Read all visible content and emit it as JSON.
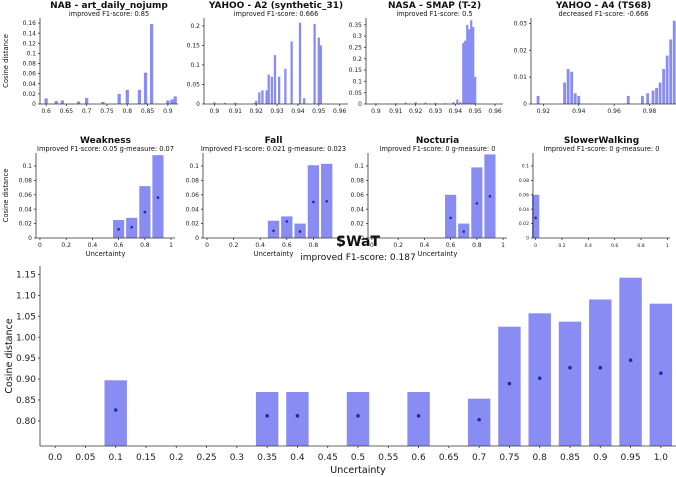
{
  "chart_data": [
    {
      "id": "nab",
      "type": "bar",
      "title": "NAB - art_daily_nojump",
      "subtitle": "improved F1-score: 0.85",
      "xlabel": "",
      "ylabel": "Cosine distance",
      "xlim": [
        0.585,
        0.925
      ],
      "ylim": [
        0,
        0.17
      ],
      "xticks": [
        0.6,
        0.65,
        0.7,
        0.75,
        0.8,
        0.85,
        0.9
      ],
      "xtick_labels": [
        "0.6",
        "0.65",
        "0.7",
        "0.75",
        "0.8",
        "0.85",
        "0.9"
      ],
      "yticks": [
        0,
        0.02,
        0.04,
        0.06,
        0.08,
        0.1,
        0.12,
        0.14,
        0.16
      ],
      "ytick_labels": [
        "0",
        "0.02",
        "0.04",
        "0.06",
        "0.08",
        "0.1",
        "0.12",
        "0.14",
        "0.16"
      ],
      "bar_width": 0.008,
      "x": [
        0.6,
        0.625,
        0.64,
        0.68,
        0.7,
        0.74,
        0.78,
        0.8,
        0.83,
        0.845,
        0.86,
        0.9,
        0.91,
        0.918
      ],
      "values": [
        0.011,
        0.006,
        0.007,
        0.005,
        0.012,
        0.004,
        0.02,
        0.028,
        0.028,
        0.062,
        0.158,
        0.007,
        0.009,
        0.015
      ]
    },
    {
      "id": "yahoo-a2",
      "type": "bar",
      "title": "YAHOO - A2 (synthetic_31)",
      "subtitle": "improved F1-score: 0.666",
      "xlabel": "",
      "ylabel": "",
      "xlim": [
        0.895,
        0.964
      ],
      "ylim": [
        0,
        0.22
      ],
      "xticks": [
        0.9,
        0.91,
        0.92,
        0.93,
        0.94,
        0.95,
        0.96
      ],
      "xtick_labels": [
        "0.9",
        "0.91",
        "0.92",
        "0.93",
        "0.94",
        "0.95",
        "0.96"
      ],
      "yticks": [
        0,
        0.05,
        0.1,
        0.15,
        0.2
      ],
      "ytick_labels": [
        "0",
        "0.05",
        "0.1",
        "0.15",
        "0.2"
      ],
      "bar_width": 0.0011,
      "x": [
        0.9,
        0.905,
        0.91,
        0.919,
        0.92,
        0.9215,
        0.923,
        0.925,
        0.926,
        0.9275,
        0.929,
        0.931,
        0.934,
        0.937,
        0.941,
        0.943,
        0.948,
        0.95,
        0.951
      ],
      "values": [
        0.004,
        0.003,
        0.003,
        0.002,
        0.008,
        0.03,
        0.035,
        0.035,
        0.075,
        0.07,
        0.125,
        0.07,
        0.09,
        0.16,
        0.208,
        0.015,
        0.205,
        0.17,
        0.15
      ]
    },
    {
      "id": "nasa",
      "type": "bar",
      "title": "NASA - SMAP (T-2)",
      "subtitle": "improved F1-score: 0.5",
      "xlabel": "",
      "ylabel": "",
      "xlim": [
        0.895,
        0.964
      ],
      "ylim": [
        0,
        0.38
      ],
      "xticks": [
        0.9,
        0.91,
        0.92,
        0.93,
        0.94,
        0.95,
        0.96
      ],
      "xtick_labels": [
        "0.9",
        "0.91",
        "0.92",
        "0.93",
        "0.94",
        "0.95",
        "0.96"
      ],
      "yticks": [
        0,
        0.05,
        0.1,
        0.15,
        0.2,
        0.25,
        0.3,
        0.35
      ],
      "ytick_labels": [
        "0",
        "0.05",
        "0.1",
        "0.15",
        "0.2",
        "0.25",
        "0.3",
        "0.35"
      ],
      "bar_width": 0.0011,
      "x": [
        0.9,
        0.905,
        0.91,
        0.915,
        0.92,
        0.925,
        0.93,
        0.935,
        0.939,
        0.941,
        0.9425,
        0.944,
        0.945,
        0.946,
        0.947,
        0.948,
        0.949,
        0.95
      ],
      "values": [
        0.003,
        0.002,
        0.003,
        0.006,
        0.008,
        0.006,
        0.005,
        0.003,
        0.008,
        0.02,
        0.008,
        0.27,
        0.28,
        0.35,
        0.33,
        0.37,
        0.34,
        0.12
      ]
    },
    {
      "id": "yahoo-a4",
      "type": "bar",
      "title": "YAHOO - A4 (TS68)",
      "subtitle": "decreased F1-score: -0.666",
      "xlabel": "",
      "ylabel": "",
      "xlim": [
        0.913,
        0.995
      ],
      "ylim": [
        0,
        0.032
      ],
      "xticks": [
        0.92,
        0.94,
        0.96,
        0.98
      ],
      "xtick_labels": [
        "0.92",
        "0.94",
        "0.96",
        "0.98"
      ],
      "yticks": [
        0,
        0.01,
        0.02,
        0.03
      ],
      "ytick_labels": [
        "0",
        "0.01",
        "0.02",
        "0.03"
      ],
      "bar_width": 0.0016,
      "x": [
        0.917,
        0.932,
        0.934,
        0.936,
        0.938,
        0.94,
        0.968,
        0.976,
        0.979,
        0.982,
        0.984,
        0.986,
        0.988,
        0.99,
        0.992,
        0.994
      ],
      "values": [
        0.003,
        0.008,
        0.013,
        0.012,
        0.004,
        0.003,
        0.003,
        0.003,
        0.004,
        0.005,
        0.006,
        0.008,
        0.013,
        0.018,
        0.024,
        0.031
      ]
    },
    {
      "id": "weakness",
      "type": "bar",
      "title": "Weakness",
      "subtitle": "Improved F1-score: 0.05   g-measure: 0.07",
      "xlabel": "Uncertainty",
      "ylabel": "Cosine distance",
      "xlim": [
        -0.03,
        1.03
      ],
      "ylim": [
        0,
        0.118
      ],
      "xticks": [
        0,
        0.2,
        0.4,
        0.6,
        0.8,
        1
      ],
      "xtick_labels": [
        "0",
        "0.2",
        "0.4",
        "0.6",
        "0.8",
        "1"
      ],
      "yticks": [
        0,
        0.02,
        0.04,
        0.06,
        0.08,
        0.1
      ],
      "ytick_labels": [
        "0",
        "0.02",
        "0.04",
        "0.06",
        "0.08",
        "0.1"
      ],
      "bar_width": 0.085,
      "x": [
        0.6,
        0.7,
        0.8,
        0.9
      ],
      "values": [
        0.025,
        0.028,
        0.072,
        0.115
      ],
      "markers": [
        0.012,
        0.015,
        0.036,
        0.056
      ]
    },
    {
      "id": "fall",
      "type": "bar",
      "title": "Fall",
      "subtitle": "Improved F1-score: 0.021   g-measure: 0.023",
      "xlabel": "Uncertainty",
      "ylabel": "",
      "xlim": [
        -0.03,
        1.03
      ],
      "ylim": [
        0,
        0.118
      ],
      "xticks": [
        0,
        0.2,
        0.4,
        0.6,
        0.8,
        1
      ],
      "xtick_labels": [
        "0",
        "0.2",
        "0.4",
        "0.6",
        "0.8",
        "1"
      ],
      "yticks": [
        0,
        0.02,
        0.04,
        0.06,
        0.08,
        0.1
      ],
      "ytick_labels": [
        "0",
        "0.02",
        "0.04",
        "0.06",
        "0.08",
        "0.1"
      ],
      "bar_width": 0.085,
      "x": [
        0.5,
        0.6,
        0.7,
        0.8,
        0.9
      ],
      "values": [
        0.024,
        0.03,
        0.02,
        0.101,
        0.103
      ],
      "markers": [
        0.01,
        0.023,
        0.009,
        0.05,
        0.051
      ]
    },
    {
      "id": "nocturia",
      "type": "bar",
      "title": "Nocturia",
      "subtitle": "Improved F1-score: 0   g-measure: 0",
      "xlabel": "Uncertainty",
      "ylabel": "",
      "xlim": [
        -0.03,
        1.03
      ],
      "ylim": [
        0,
        0.118
      ],
      "xticks": [
        0,
        0.2,
        0.4,
        0.6,
        0.8,
        1
      ],
      "xtick_labels": [
        "0",
        "0.2",
        "0.4",
        "0.6",
        "0.8",
        "1"
      ],
      "yticks": [
        0,
        0.02,
        0.04,
        0.06,
        0.08,
        0.1
      ],
      "ytick_labels": [
        "0",
        "0.02",
        "0.04",
        "0.06",
        "0.08",
        "0.1"
      ],
      "bar_width": 0.085,
      "x": [
        0.6,
        0.7,
        0.8,
        0.9
      ],
      "values": [
        0.06,
        0.02,
        0.098,
        0.116
      ],
      "markers": [
        0.028,
        0.009,
        0.048,
        0.058
      ]
    },
    {
      "id": "slowerwalking",
      "type": "bar",
      "title": "SlowerWalking",
      "subtitle": "Improved F1-score: 0   g-measure: 0",
      "xlabel": "",
      "ylabel": "",
      "xlim": [
        -0.02,
        1.02
      ],
      "ylim": [
        0,
        0.118
      ],
      "xticks": [
        0,
        0.2,
        0.4,
        0.6,
        0.8,
        1
      ],
      "xtick_labels": [
        "0",
        "0.2",
        "0.4",
        "0.6",
        "0.8",
        "1"
      ],
      "yticks": [
        0,
        0.02,
        0.04,
        0.06,
        0.08,
        0.1
      ],
      "ytick_labels": [
        "0",
        "0.02",
        "0.04",
        "0.06",
        "0.08",
        "0.1"
      ],
      "bar_width": 0.055,
      "x": [
        0.0
      ],
      "values": [
        0.06
      ],
      "markers": [
        0.028
      ]
    },
    {
      "id": "swat",
      "type": "bar",
      "title": "SWaT",
      "subtitle": "improved F1-score: 0.187",
      "xlabel": "Uncertainty",
      "ylabel": "Cosine distance",
      "xlim": [
        -0.025,
        1.025
      ],
      "ylim": [
        0.74,
        1.17
      ],
      "xticks": [
        0,
        0.05,
        0.1,
        0.15,
        0.2,
        0.25,
        0.3,
        0.35,
        0.4,
        0.45,
        0.5,
        0.55,
        0.6,
        0.65,
        0.7,
        0.75,
        0.8,
        0.85,
        0.9,
        0.95,
        1.0
      ],
      "xtick_labels": [
        "0.0",
        "0.05",
        "0.1",
        "0.15",
        "0.2",
        "0.25",
        "0.3",
        "0.35",
        "0.4",
        "0.45",
        "0.5",
        "0.55",
        "0.6",
        "0.65",
        "0.7",
        "0.75",
        "0.8",
        "0.85",
        "0.9",
        "0.95",
        "1.0"
      ],
      "yticks": [
        0.8,
        0.85,
        0.9,
        0.95,
        1.0,
        1.05,
        1.1,
        1.15
      ],
      "ytick_labels": [
        "0.80",
        "0.85",
        "0.90",
        "0.95",
        "1.00",
        "1.05",
        "1.10",
        "1.15"
      ],
      "bar_width": 0.037,
      "x": [
        0.1,
        0.35,
        0.4,
        0.5,
        0.6,
        0.7,
        0.75,
        0.8,
        0.85,
        0.9,
        0.95,
        1.0
      ],
      "values": [
        0.897,
        0.869,
        0.869,
        0.869,
        0.869,
        0.853,
        1.025,
        1.057,
        1.037,
        1.09,
        1.142,
        1.08
      ],
      "markers": [
        0.826,
        0.812,
        0.812,
        0.812,
        0.812,
        0.803,
        0.889,
        0.902,
        0.927,
        0.927,
        0.945,
        0.914
      ]
    }
  ]
}
